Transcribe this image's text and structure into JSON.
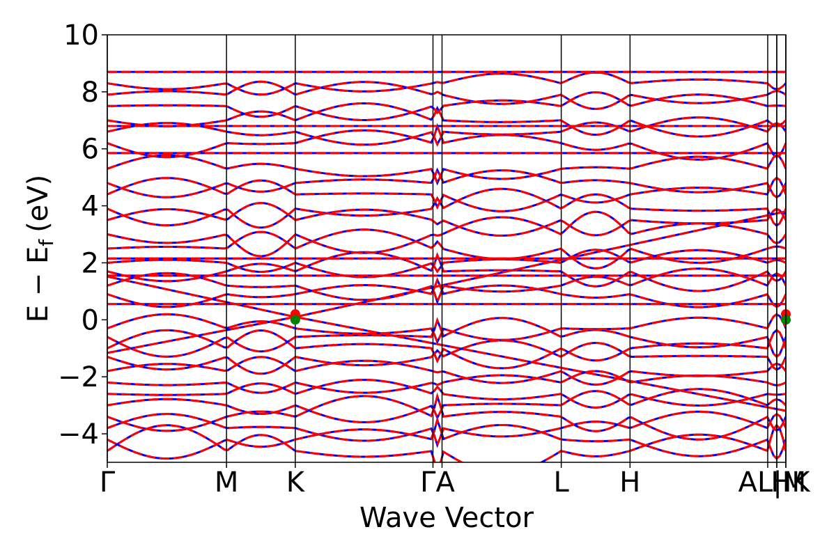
{
  "chart_data": {
    "type": "line",
    "title": "",
    "xlabel": "Wave Vector",
    "ylabel": "E − E",
    "ylabel_subscript": "f",
    "ylabel_unit": "(eV)",
    "ylim": [
      -5,
      10
    ],
    "yticks": [
      -4,
      -2,
      0,
      2,
      4,
      6,
      8,
      10
    ],
    "ytick_labels": [
      "−4",
      "−2",
      "0",
      "2",
      "4",
      "6",
      "8",
      "10"
    ],
    "x_kpath": [
      {
        "label": "Γ",
        "x": 0.0
      },
      {
        "label": "M",
        "x": 1.0
      },
      {
        "label": "K",
        "x": 1.577
      },
      {
        "label": "Γ",
        "x": 2.732
      },
      {
        "label": "A",
        "x": 2.808
      },
      {
        "label": "L",
        "x": 3.808
      },
      {
        "label": "H",
        "x": 4.385
      },
      {
        "label": "A",
        "x": 5.54
      },
      {
        "label": "L",
        "x": 5.616
      },
      {
        "label": "M",
        "x": 5.616
      },
      {
        "label": "H",
        "x": 5.692
      },
      {
        "label": "K",
        "x": 5.692
      }
    ],
    "x_tick_labels": [
      {
        "text": "Γ",
        "x": 0.0
      },
      {
        "text": "M",
        "x": 1.0
      },
      {
        "text": "K",
        "x": 1.577
      },
      {
        "text": "ΓA",
        "x": 2.77
      },
      {
        "text": "L",
        "x": 3.808
      },
      {
        "text": "H",
        "x": 4.385
      },
      {
        "text": "AL|M",
        "x": 5.578
      },
      {
        "text": "HK",
        "x": 5.73
      }
    ],
    "xlim": [
      0,
      5.692
    ],
    "series": [
      {
        "color": "#0000ff",
        "style": "solid"
      },
      {
        "color": "#ff0000",
        "style": "dashed"
      }
    ],
    "flat_bands": [
      0.55,
      2.15,
      1.55,
      5.85,
      6.8,
      8.7
    ],
    "markers": [
      {
        "x": 1.577,
        "y": 0.2,
        "color": "#ff0000"
      },
      {
        "x": 1.577,
        "y": 0.0,
        "color": "#008000"
      },
      {
        "x": 5.692,
        "y": 0.2,
        "color": "#ff0000"
      },
      {
        "x": 5.692,
        "y": 0.0,
        "color": "#008000"
      }
    ],
    "grid": false,
    "legend": "none"
  }
}
